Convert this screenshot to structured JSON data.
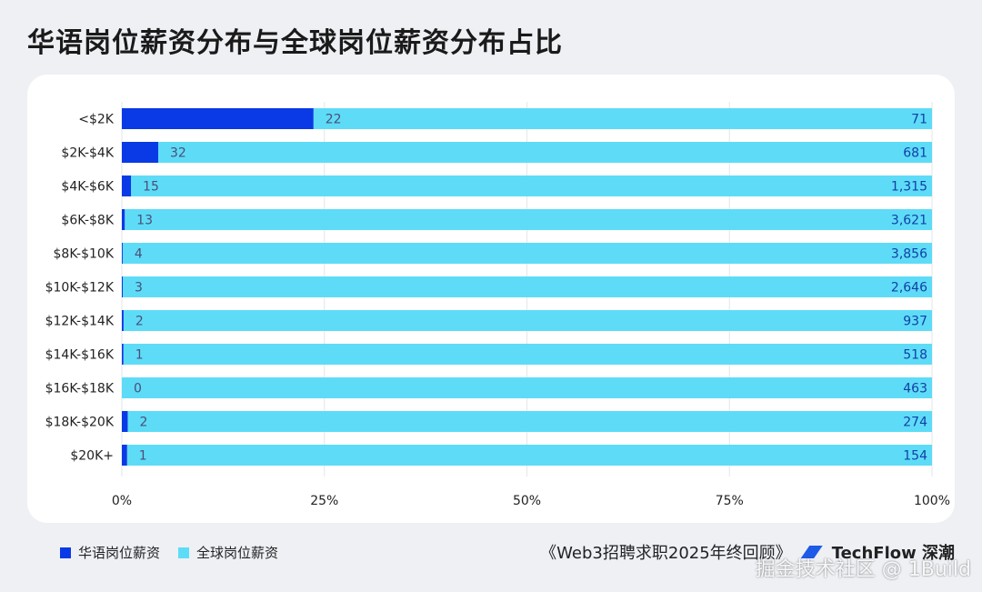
{
  "title": "华语岗位薪资分布与全球岗位薪资分布占比",
  "legend": [
    {
      "label": "华语岗位薪资",
      "color": "#0a3ae6"
    },
    {
      "label": "全球岗位薪资",
      "color": "#5edcf7"
    }
  ],
  "source": {
    "text": "《Web3招聘求职2025年终回顾》",
    "brand": "TechFlow 深潮"
  },
  "watermark": "掘金技术社区 @ 1Build",
  "chart_data": {
    "type": "bar",
    "orientation": "horizontal",
    "stacked": "100%",
    "categories": [
      "<$2K",
      "$2K-$4K",
      "$4K-$6K",
      "$6K-$8K",
      "$8K-$10K",
      "$10K-$12K",
      "$12K-$14K",
      "$14K-$16K",
      "$16K-$18K",
      "$18K-$20K",
      "$20K+"
    ],
    "series": [
      {
        "name": "华语岗位薪资",
        "color": "#0a3ae6",
        "values": [
          22,
          32,
          15,
          13,
          4,
          3,
          2,
          1,
          0,
          2,
          1
        ],
        "labels": [
          "22",
          "32",
          "15",
          "13",
          "4",
          "3",
          "2",
          "1",
          "0",
          "2",
          "1"
        ]
      },
      {
        "name": "全球岗位薪资",
        "color": "#5edcf7",
        "values": [
          71,
          681,
          1315,
          3621,
          3856,
          2646,
          937,
          518,
          463,
          274,
          154
        ],
        "labels": [
          "71",
          "681",
          "1,315",
          "3,621",
          "3,856",
          "2,646",
          "937",
          "518",
          "463",
          "274",
          "154"
        ]
      }
    ],
    "xlim": [
      0,
      100
    ],
    "xticks": [
      "0%",
      "25%",
      "50%",
      "75%",
      "100%"
    ],
    "xlabel": "",
    "ylabel": "",
    "grid": true,
    "legend_position": "bottom-left"
  }
}
